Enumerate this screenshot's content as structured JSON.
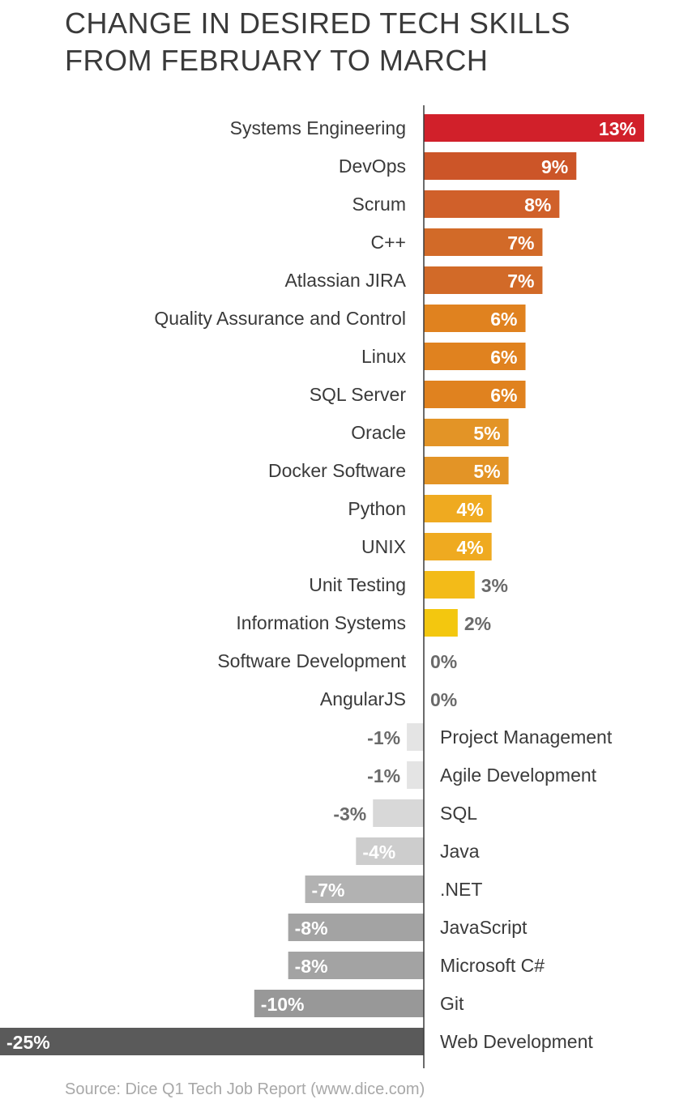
{
  "title_lines": [
    "CHANGE IN DESIRED TECH SKILLS",
    "FROM FEBRUARY TO MARCH"
  ],
  "source": "Source: Dice Q1 Tech Job Report (www.dice.com)",
  "chart_data": {
    "type": "bar",
    "orientation": "horizontal",
    "title": "CHANGE IN DESIRED TECH SKILLS FROM FEBRUARY TO MARCH",
    "value_suffix": "%",
    "xlim": [
      -25,
      13
    ],
    "categories": [
      "Systems Engineering",
      "DevOps",
      "Scrum",
      "C++",
      "Atlassian JIRA",
      "Quality Assurance and Control",
      "Linux",
      "SQL Server",
      "Oracle",
      "Docker Software",
      "Python",
      "UNIX",
      "Unit Testing",
      "Information Systems",
      "Software Development",
      "AngularJS",
      "Project Management",
      "Agile Development",
      "SQL",
      "Java",
      ".NET",
      "JavaScript",
      "Microsoft C#",
      "Git",
      "Web Development"
    ],
    "values": [
      13,
      9,
      8,
      7,
      7,
      6,
      6,
      6,
      5,
      5,
      4,
      4,
      3,
      2,
      0,
      0,
      -1,
      -1,
      -3,
      -4,
      -7,
      -8,
      -8,
      -10,
      -25
    ],
    "colors": [
      "#d1202a",
      "#cc5528",
      "#d0602a",
      "#d26a28",
      "#d26a28",
      "#e0821f",
      "#e0821f",
      "#e0821f",
      "#e39426",
      "#e39426",
      "#efaa20",
      "#efaa20",
      "#f3bb18",
      "#f3c70f",
      "#cccccc",
      "#cccccc",
      "#e4e4e4",
      "#e4e4e4",
      "#d8d8d8",
      "#cdcdcd",
      "#b2b2b2",
      "#a3a3a3",
      "#a3a3a3",
      "#989898",
      "#5a5a5a"
    ],
    "axis_color": "#3a3a3a",
    "category_label_color": "#3a3a3a",
    "value_label_color_inside": "#ffffff",
    "value_label_color_outside": "#6a6a6a"
  }
}
